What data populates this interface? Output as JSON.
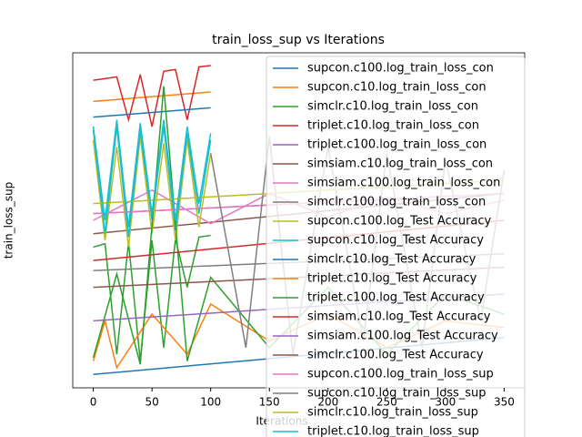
{
  "chart_data": {
    "type": "line",
    "title": "train_loss_sup vs Iterations",
    "xlabel": "Iterations",
    "ylabel": "train_loss_sup",
    "xlim": [
      -17.5,
      367.5
    ],
    "xticks": [
      0,
      50,
      100,
      150,
      200,
      250,
      300,
      350
    ],
    "ylim": [
      0,
      100
    ],
    "legend": "upper right",
    "series": [
      {
        "name": "supcon.c100.log_train_loss_con",
        "color": "#1f77b4",
        "x": [
          0,
          350
        ],
        "values": [
          4,
          15
        ]
      },
      {
        "name": "supcon.c10.log_train_loss_con",
        "color": "#ff7f0e",
        "x": [
          0,
          100
        ],
        "values": [
          85.5,
          88.3
        ]
      },
      {
        "name": "simclr.c10.log_train_loss_con",
        "color": "#2ca02c",
        "x": [
          0,
          10,
          20,
          30,
          40,
          50,
          60,
          70,
          80,
          90,
          100
        ],
        "values": [
          42,
          43,
          10,
          43.5,
          8,
          44,
          12,
          44.5,
          30,
          45,
          45.5
        ]
      },
      {
        "name": "triplet.c10.log_train_loss_con",
        "color": "#d62728",
        "x": [
          0,
          10,
          20,
          30,
          40,
          50,
          60,
          70,
          80,
          90,
          100
        ],
        "values": [
          91.8,
          92.3,
          92.8,
          80,
          93.5,
          78,
          94.5,
          95,
          80,
          95.8,
          96.2
        ]
      },
      {
        "name": "triplet.c100.log_train_loss_con",
        "color": "#9467bd",
        "x": [
          0,
          350
        ],
        "values": [
          52,
          58
        ]
      },
      {
        "name": "simsiam.c10.log_train_loss_con",
        "color": "#8c564b",
        "x": [
          0,
          350
        ],
        "values": [
          46,
          58
        ]
      },
      {
        "name": "simsiam.c100.log_train_loss_con",
        "color": "#e377c2",
        "x": [
          0,
          50,
          100,
          150,
          200,
          250,
          300,
          350
        ],
        "values": [
          50,
          59,
          49,
          58,
          51,
          57,
          52,
          56
        ]
      },
      {
        "name": "simclr.c100.log_train_loss_con",
        "color": "#7f7f7f",
        "x": [
          0,
          350
        ],
        "values": [
          35,
          40
        ]
      },
      {
        "name": "supcon.c100.log_Test Accuracy",
        "color": "#bcbd22",
        "x": [
          0,
          10,
          20,
          30,
          40,
          50,
          60,
          70,
          80,
          90,
          100
        ],
        "values": [
          74,
          44,
          72,
          42,
          75,
          46,
          73,
          44,
          74,
          48,
          70
        ]
      },
      {
        "name": "supcon.c10.log_Test Accuracy",
        "color": "#17becf",
        "x": [
          0,
          10,
          20,
          30,
          40,
          50,
          60,
          70,
          80,
          90,
          100
        ],
        "values": [
          77,
          46,
          78,
          45,
          77,
          50,
          78,
          47,
          76,
          52,
          74
        ]
      },
      {
        "name": "simclr.c10.log_Test Accuracy",
        "color": "#1f77b4",
        "x": [
          0,
          100
        ],
        "values": [
          80.8,
          83.6
        ]
      },
      {
        "name": "triplet.c10.log_Test Accuracy",
        "color": "#ff7f0e",
        "x": [
          0,
          10,
          20,
          50,
          80,
          100,
          150,
          200,
          250,
          300,
          350
        ],
        "values": [
          8,
          20,
          6,
          22,
          10,
          25,
          14,
          22,
          12,
          20,
          18
        ]
      },
      {
        "name": "triplet.c100.log_Test Accuracy",
        "color": "#2ca02c",
        "x": [
          0,
          20,
          40,
          60,
          80,
          100,
          150,
          200,
          250,
          300,
          350
        ],
        "values": [
          9,
          34,
          7,
          90,
          8,
          33,
          12,
          30,
          10,
          28,
          22
        ]
      },
      {
        "name": "simsiam.c10.log_Test Accuracy",
        "color": "#d62728",
        "x": [
          0,
          350
        ],
        "values": [
          38,
          50
        ]
      },
      {
        "name": "simsiam.c100.log_Test Accuracy",
        "color": "#9467bd",
        "x": [
          0,
          350
        ],
        "values": [
          20,
          28
        ]
      },
      {
        "name": "simclr.c100.log_Test Accuracy",
        "color": "#8c564b",
        "x": [
          0,
          350
        ],
        "values": [
          30,
          36
        ]
      },
      {
        "name": "supcon.c100.log_train_loss_sup",
        "color": "#e377c2",
        "x": [
          0,
          350
        ],
        "values": [
          52,
          58
        ]
      },
      {
        "name": "supcon.c10.log_train_loss_sup",
        "color": "#7f7f7f",
        "x": [
          100,
          130,
          150,
          170,
          200,
          230,
          250,
          280,
          300,
          330,
          350
        ],
        "values": [
          70,
          12,
          75,
          10,
          72,
          14,
          70,
          12,
          68,
          20,
          65
        ]
      },
      {
        "name": "simclr.c10.log_train_loss_sup",
        "color": "#bcbd22",
        "x": [
          0,
          350
        ],
        "values": [
          55,
          62
        ]
      },
      {
        "name": "triplet.c10.log_train_loss_sup",
        "color": "#17becf",
        "x": [
          0,
          10,
          20,
          30,
          40,
          50,
          60,
          70,
          80,
          90,
          100
        ],
        "values": [
          78,
          50,
          80,
          48,
          79,
          52,
          80,
          50,
          78,
          55,
          76
        ]
      }
    ]
  }
}
